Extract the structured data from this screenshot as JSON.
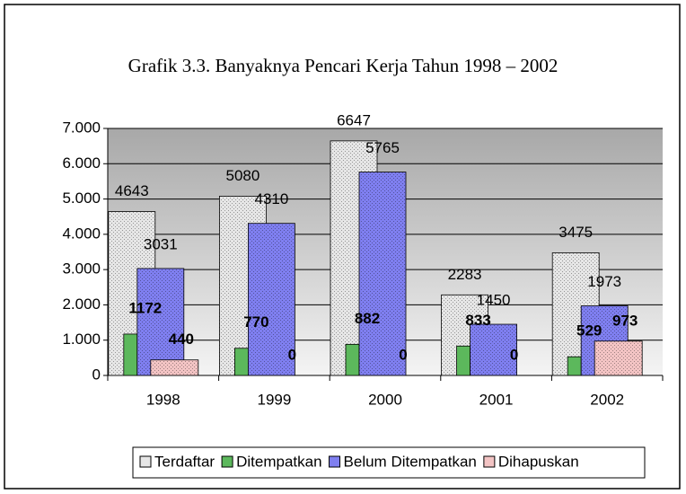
{
  "chart_data": {
    "type": "bar",
    "title": "Grafik 3.3. Banyaknya Pencari Kerja Tahun 1998 – 2002",
    "categories": [
      "1998",
      "1999",
      "2000",
      "2001",
      "2002"
    ],
    "series": [
      {
        "name": "Terdaftar",
        "color": "#e6e6e6",
        "values": [
          4643,
          5080,
          6647,
          2283,
          3475
        ]
      },
      {
        "name": "Ditempatkan",
        "color": "#5cb85c",
        "values": [
          1172,
          770,
          882,
          833,
          529
        ]
      },
      {
        "name": "Belum Ditempatkan",
        "color": "#7f7ff0",
        "values": [
          3031,
          4310,
          5765,
          1450,
          1973
        ]
      },
      {
        "name": "Dihapuskan",
        "color": "#f3c4c4",
        "values": [
          440,
          0,
          0,
          0,
          973
        ]
      }
    ],
    "ylim": [
      0,
      7000
    ],
    "yticks": [
      0,
      {
        "value": 1000,
        "label": "1.000"
      },
      {
        "value": 2000,
        "label": "2.000"
      },
      {
        "value": 3000,
        "label": "3.000"
      },
      {
        "value": 4000,
        "label": "4.000"
      },
      {
        "value": 5000,
        "label": "5.000"
      },
      {
        "value": 6000,
        "label": "6.000"
      },
      {
        "value": 7000,
        "label": "7.000"
      }
    ],
    "grid": true,
    "legend": "bottom"
  }
}
